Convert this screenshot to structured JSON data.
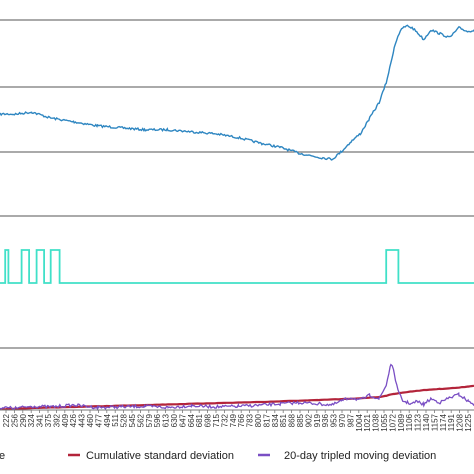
{
  "chart_data": [
    {
      "type": "line",
      "panel": "price",
      "grid": true,
      "ylim": [
        0,
        100
      ],
      "x": [
        222,
        256,
        290,
        330,
        380,
        430,
        480,
        530,
        580,
        630,
        680,
        730,
        780,
        820,
        860,
        900,
        930,
        950,
        970,
        990,
        1010,
        1030,
        1045,
        1055,
        1062,
        1070,
        1080,
        1090,
        1100,
        1110,
        1125,
        1140,
        1160,
        1180,
        1200,
        1220,
        1232
      ],
      "series": [
        {
          "name": "",
          "color": "#2e86c1",
          "values": [
            52,
            52,
            53,
            50,
            48,
            46,
            45,
            44,
            44,
            43,
            42,
            40,
            37,
            35,
            32,
            30,
            29,
            33,
            38,
            42,
            50,
            58,
            68,
            78,
            86,
            92,
            96,
            97,
            96,
            94,
            90,
            95,
            93,
            91,
            96,
            94,
            95
          ]
        }
      ]
    },
    {
      "type": "line",
      "panel": "signal",
      "ylim": [
        0,
        1
      ],
      "series": [
        {
          "name": "",
          "color": "#40e0c8",
          "segments": [
            [
              233,
              240
            ],
            [
              268,
              284
            ],
            [
              300,
              316
            ],
            [
              330,
              349
            ],
            [
              1045,
              1071
            ]
          ]
        }
      ]
    },
    {
      "type": "line",
      "panel": "deviation",
      "ylim": [
        0,
        10
      ],
      "x": [
        222,
        256,
        290,
        330,
        380,
        430,
        480,
        530,
        580,
        630,
        680,
        730,
        780,
        820,
        860,
        900,
        930,
        950,
        970,
        990,
        1010,
        1030,
        1045,
        1055,
        1062,
        1070,
        1080,
        1090,
        1100,
        1110,
        1125,
        1140,
        1160,
        1180,
        1200,
        1220,
        1232
      ],
      "series": [
        {
          "name": "Cumulative standard deviation",
          "color": "#b3243a",
          "values": [
            0.1,
            0.2,
            0.3,
            0.4,
            0.5,
            0.6,
            0.7,
            0.8,
            0.9,
            1.0,
            1.1,
            1.2,
            1.3,
            1.4,
            1.5,
            1.6,
            1.7,
            1.75,
            1.8,
            1.9,
            2.0,
            2.1,
            2.3,
            2.5,
            2.6,
            2.7,
            2.8,
            2.9,
            3.0,
            3.1,
            3.2,
            3.3,
            3.4,
            3.5,
            3.6,
            3.8,
            3.9
          ]
        },
        {
          "name": "20-day tripled moving deviation",
          "color": "#7a4fc4",
          "values": [
            0.4,
            0.3,
            0.6,
            0.5,
            0.8,
            0.4,
            0.5,
            0.6,
            0.4,
            0.7,
            0.5,
            0.6,
            0.8,
            1.0,
            1.2,
            1.0,
            0.8,
            1.5,
            2.0,
            1.6,
            2.4,
            1.8,
            4.0,
            7.5,
            6.0,
            3.0,
            1.5,
            1.2,
            1.0,
            1.4,
            0.9,
            1.8,
            1.2,
            2.0,
            2.5,
            1.4,
            1.0
          ]
        }
      ]
    }
  ],
  "x_ticks": [
    "222",
    "256",
    "290",
    "324",
    "341",
    "375",
    "392",
    "409",
    "426",
    "443",
    "460",
    "477",
    "494",
    "511",
    "528",
    "545",
    "562",
    "579",
    "596",
    "613",
    "630",
    "647",
    "664",
    "681",
    "698",
    "715",
    "732",
    "749",
    "766",
    "783",
    "800",
    "817",
    "834",
    "851",
    "868",
    "885",
    "902",
    "919",
    "936",
    "953",
    "970",
    "987",
    "1004",
    "1021",
    "1038",
    "1055",
    "1072",
    "1089",
    "1106",
    "1123",
    "1140",
    "1157",
    "1174",
    "1191",
    "1208",
    "1225"
  ],
  "legend": {
    "entry0": "e",
    "entry1": "Cumulative standard deviation",
    "entry2": "20-day tripled moving deviation"
  }
}
